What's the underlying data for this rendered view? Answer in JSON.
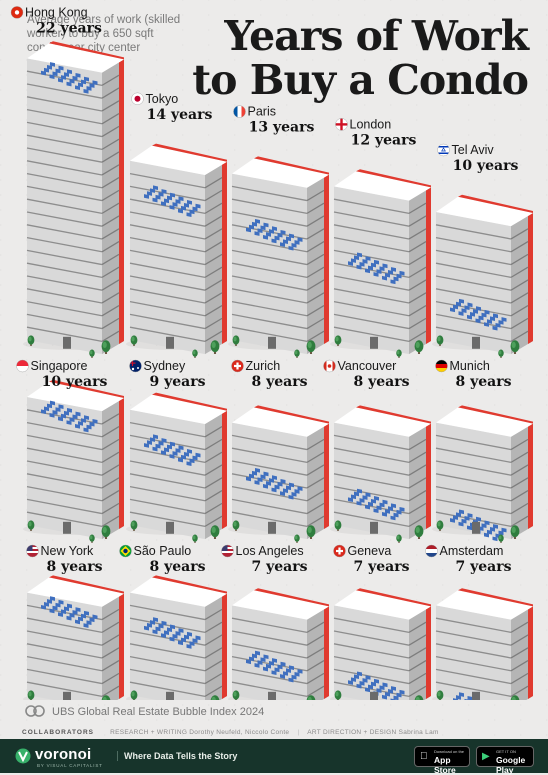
{
  "subtitle": "Average years of work (skilled\nworker) to buy a 650 sqft\ncondo near city center",
  "title": "Years of Work\nto Buy a Condo",
  "chart_data": {
    "type": "bar",
    "title": "Years of Work to Buy a Condo",
    "subtitle": "Average years of work (skilled worker) to buy a 650 sqft condo near city center",
    "categories": [
      "Hong Kong",
      "Tokyo",
      "Paris",
      "London",
      "Tel Aviv",
      "Singapore",
      "Sydney",
      "Zurich",
      "Vancouver",
      "Munich",
      "New York",
      "São Paulo",
      "Los Angeles",
      "Geneva",
      "Amsterdam"
    ],
    "values": [
      22,
      14,
      13,
      12,
      10,
      10,
      9,
      8,
      8,
      8,
      8,
      8,
      7,
      7,
      7
    ],
    "labels": [
      "22 years",
      "14 years",
      "13 years",
      "12 years",
      "10 years",
      "10 years",
      "9 years",
      "8 years",
      "8 years",
      "8 years",
      "8 years",
      "8 years",
      "7 years",
      "7 years",
      "7 years"
    ],
    "flags": [
      "hong-kong-flag",
      "japan-flag",
      "france-flag",
      "england-flag",
      "israel-flag",
      "singapore-flag",
      "australia-flag",
      "switzerland-flag",
      "canada-flag",
      "germany-flag",
      "usa-flag",
      "brazil-flag",
      "usa-flag",
      "switzerland-flag",
      "netherlands-flag"
    ],
    "unit": "years",
    "grid": false,
    "colors": {
      "tower_front": "#d9d9d9",
      "tower_side": "#b5b5b5",
      "roof": "#ffffff",
      "window": "#3f6fbf",
      "accent": "#e03a2f",
      "tree": "#2f7d3e"
    }
  },
  "source": "UBS Global Real Estate Bubble Index 2024",
  "credits": {
    "collaborators": "COLLABORATORS",
    "research_label": "RESEARCH + WRITING",
    "research": "Dorothy Neufeld, Niccolo Conte",
    "design_label": "ART DIRECTION + DESIGN",
    "design": "Sabrina Lam"
  },
  "footer": {
    "brand": "voronoi",
    "brand_sub": "BY VISUAL CAPITALIST",
    "tagline": "Where Data Tells the Story",
    "app_store_small": "Download on the",
    "app_store": "App Store",
    "google_play_small": "GET IT ON",
    "google_play": "Google Play"
  }
}
